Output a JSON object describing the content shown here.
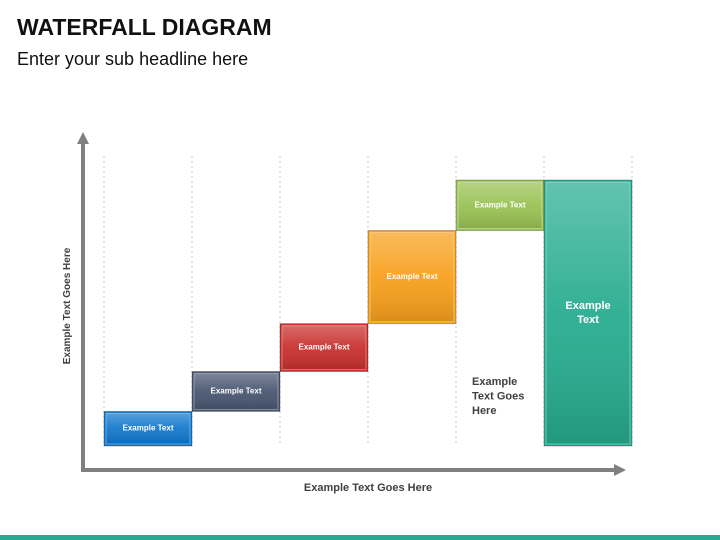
{
  "title": "WATERFALL DIAGRAM",
  "subtitle": "Enter your sub headline here",
  "colors": {
    "axis": "#808080",
    "grid": "#c8c8c8",
    "text": "#404040",
    "footer_bar": "#2aa890"
  },
  "chart_data": {
    "type": "bar",
    "subtype": "waterfall",
    "xlabel": "Example Text Goes Here",
    "ylabel": "Example Text Goes Here",
    "ylim": [
      0,
      100
    ],
    "grid": true,
    "grid_orientation": "vertical-dashed",
    "annotation": {
      "text": [
        "Example",
        "Text Goes",
        "Here"
      ],
      "column": 4
    },
    "bars": [
      {
        "label": "Example Text",
        "label_lines": [
          "Example Text"
        ],
        "base": 0,
        "value": 13,
        "color": "#1278cc"
      },
      {
        "label": "Example Text",
        "label_lines": [
          "Example Text"
        ],
        "base": 13,
        "value": 15,
        "color": "#485670"
      },
      {
        "label": "Example Text",
        "label_lines": [
          "Example Text"
        ],
        "base": 28,
        "value": 18,
        "color": "#c8302d"
      },
      {
        "label": "Example Text",
        "label_lines": [
          "Example Text"
        ],
        "base": 46,
        "value": 35,
        "color": "#f7a01c"
      },
      {
        "label": "Example Text",
        "label_lines": [
          "Example Text"
        ],
        "base": 81,
        "value": 19,
        "color": "#99c253"
      },
      {
        "label": "Example Text",
        "label_lines": [
          "Example",
          "Text"
        ],
        "base": 0,
        "value": 100,
        "color": "#26ac8f",
        "total": true
      }
    ]
  }
}
